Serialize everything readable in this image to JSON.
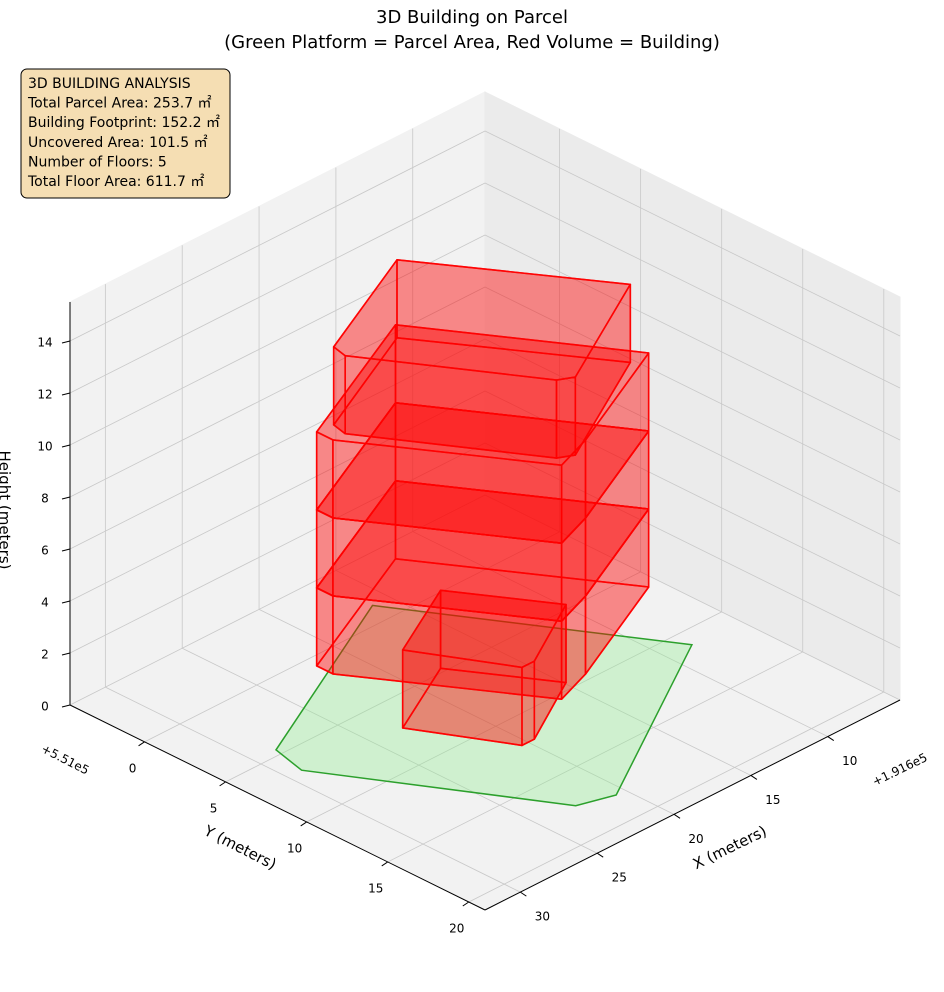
{
  "chart_data": {
    "type": "3d",
    "title": "3D Building on Parcel",
    "subtitle": "(Green Platform = Parcel Area, Red Volume = Building)",
    "xlabel": "X (meters)",
    "ylabel": "Y (meters)",
    "zlabel": "Height (meters)",
    "x_offset_label": "+1.916e5",
    "y_offset_label": "+5.51e5",
    "xlim": [
      5.3,
      32.3
    ],
    "ylim": [
      -4.6,
      21
    ],
    "zlim": [
      0,
      15.5
    ],
    "xticks": [
      10,
      15,
      20,
      25,
      30
    ],
    "yticks": [
      0,
      5,
      10,
      15,
      20
    ],
    "zticks": [
      0,
      2,
      4,
      6,
      8,
      10,
      12,
      14
    ],
    "grid": true,
    "annotation": [
      "3D BUILDING ANALYSIS",
      "Total Parcel Area: 253.7 ㎡",
      "Building Footprint: 152.2 ㎡",
      "Uncovered Area: 101.5 ㎡",
      "Number of Floors: 5",
      "Total Floor Area: 611.7 ㎡"
    ],
    "parcel": {
      "color": "#2ca02c",
      "fill": "#90ee90",
      "z": 0,
      "x": [
        16.1,
        28.6,
        29.1,
        22.6,
        20.6,
        8.4
      ],
      "y": [
        -1.3,
        4.6,
        6.65,
        17.4,
        18.0,
        11.1
      ]
    },
    "volumes": [
      {
        "color": "#ff0000",
        "z": [
          0,
          3
        ],
        "x": [
          18.0,
          23.1,
          20.4,
          19.6,
          14.9
        ],
        "y": [
          4.7,
          7.2,
          12.0,
          12.0,
          9.5
        ]
      },
      {
        "color": "#ff0000",
        "z": [
          3,
          6
        ],
        "x": [
          17.4,
          26.9,
          26.9,
          21.2,
          18.8,
          11.1
        ],
        "y": [
          1.35,
          5.5,
          6.5,
          15.2,
          14.4,
          11.0
        ]
      },
      {
        "color": "#ff0000",
        "z": [
          6,
          9
        ],
        "x": [
          17.4,
          26.9,
          26.9,
          21.2,
          18.8,
          11.1
        ],
        "y": [
          1.35,
          5.5,
          6.5,
          15.2,
          14.4,
          11.0
        ]
      },
      {
        "color": "#ff0000",
        "z": [
          9,
          12
        ],
        "x": [
          17.4,
          26.9,
          26.9,
          21.2,
          18.8,
          11.1
        ],
        "y": [
          1.35,
          5.5,
          6.5,
          15.2,
          14.4,
          11.0
        ]
      },
      {
        "color": "#ff0000",
        "z": [
          12,
          15
        ],
        "x": [
          18.2,
          25.9,
          26.1,
          20.9,
          20.1,
          12.3
        ],
        "y": [
          2.2,
          5.6,
          6.5,
          14.6,
          15.0,
          11.0
        ]
      }
    ]
  }
}
